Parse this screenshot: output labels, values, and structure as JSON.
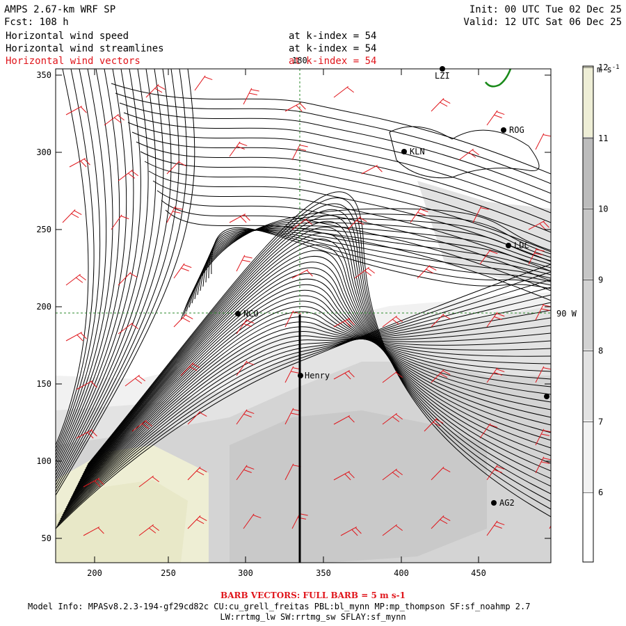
{
  "header": {
    "model": "AMPS 2.67-km WRF SP",
    "fcst": "Fcst: 108 h",
    "init": "Init: 00 UTC Tue 02 Dec 25",
    "valid": "Valid: 12 UTC Sat 06 Dec 25",
    "fields": [
      {
        "name": "Horizontal wind speed",
        "level": "at k-index = 54",
        "color": "#000000"
      },
      {
        "name": "Horizontal wind streamlines",
        "level": "at k-index = 54",
        "color": "#000000"
      },
      {
        "name": "Horizontal wind vectors",
        "level": "at k-index = 54",
        "color": "#e0151b"
      }
    ]
  },
  "map": {
    "x_ticks": [
      "200",
      "250",
      "300",
      "350",
      "400",
      "450"
    ],
    "y_ticks": [
      "50",
      "100",
      "150",
      "200",
      "250",
      "300",
      "350"
    ],
    "meridian_label": "180",
    "parallel_label": "90 W",
    "stations": [
      {
        "name": "LZI"
      },
      {
        "name": "ROG"
      },
      {
        "name": "KLN"
      },
      {
        "name": "LDC"
      },
      {
        "name": "NCO"
      },
      {
        "name": "Henry"
      },
      {
        "name": "AG2"
      },
      {
        "name": ""
      }
    ],
    "colors": {
      "vectors": "#e0151b",
      "coast": "#1a8a1a",
      "gridlines": "#2a8a2a"
    }
  },
  "colorbar": {
    "units": "m s-1",
    "ticks": [
      "6",
      "7",
      "8",
      "9",
      "10",
      "11",
      "12"
    ],
    "colors": [
      "#ffffff",
      "#f2f2f2",
      "#e2e2e2",
      "#d2d2d2",
      "#c6c6c6",
      "#bcbcbc",
      "#eeeed6"
    ]
  },
  "footer": {
    "barb_note": "BARB VECTORS: FULL BARB = 5 m s-1",
    "model_info": "Model Info: MPASv8.2.3-194-gf29cd82c CU:cu_grell_freitas PBL:bl_mynn MP:mp_thompson SF:sf_noahmp 2.7",
    "physics": "LW:rrtmg_lw SW:rrtmg_sw SFLAY:sf_mynn"
  }
}
